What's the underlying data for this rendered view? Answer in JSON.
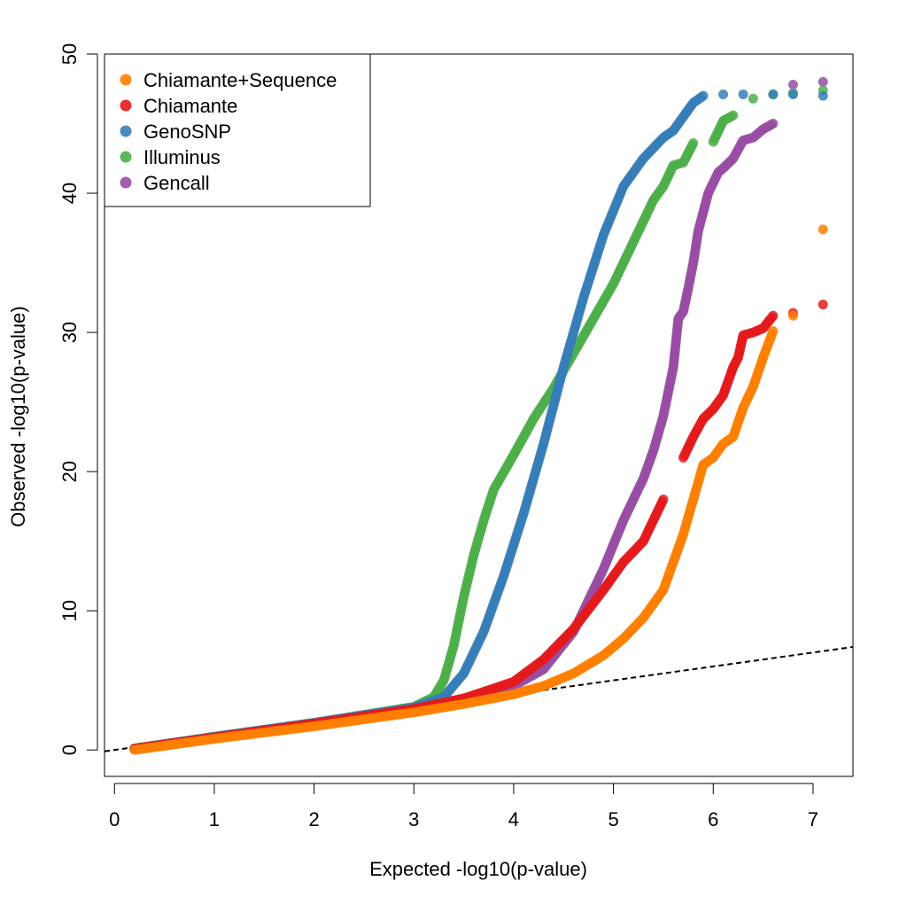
{
  "chart_data": {
    "type": "scatter",
    "xlabel": "Expected -log10(p-value)",
    "ylabel": "Observed -log10(p-value)",
    "xlim": [
      -0.1,
      7.4
    ],
    "ylim": [
      -1.9,
      50
    ],
    "x_ticks": [
      0,
      1,
      2,
      3,
      4,
      5,
      6,
      7
    ],
    "y_ticks": [
      0,
      10,
      20,
      30,
      40,
      50
    ],
    "x_tick_labels": [
      "0",
      "1",
      "2",
      "3",
      "4",
      "5",
      "6",
      "7"
    ],
    "y_tick_labels": [
      "0",
      "10",
      "20",
      "30",
      "40",
      "50"
    ],
    "grid": false,
    "legend_position": "top-left",
    "reference_line": {
      "style": "dashed",
      "slope": 1,
      "intercept": 0
    },
    "series": [
      {
        "name": "Gencall",
        "color": "#984EA3",
        "points": [
          [
            0.2,
            0.1
          ],
          [
            1,
            0.9
          ],
          [
            2,
            1.9
          ],
          [
            3,
            2.95
          ],
          [
            3.5,
            3.7
          ],
          [
            4,
            4.6
          ],
          [
            4.3,
            5.8
          ],
          [
            4.6,
            8.5
          ],
          [
            4.9,
            13
          ],
          [
            5.1,
            16.5
          ],
          [
            5.3,
            19.5
          ],
          [
            5.4,
            21.5
          ],
          [
            5.5,
            24
          ],
          [
            5.6,
            27.5
          ],
          [
            5.65,
            31
          ],
          [
            5.7,
            31.5
          ],
          [
            5.75,
            33.2
          ],
          [
            5.8,
            35
          ],
          [
            5.85,
            37.3
          ],
          [
            5.95,
            40
          ],
          [
            6.05,
            41.5
          ],
          [
            6.1,
            41.8
          ],
          [
            6.2,
            42.5
          ],
          [
            6.3,
            43.8
          ],
          [
            6.4,
            44
          ],
          [
            6.5,
            44.6
          ],
          [
            6.6,
            45
          ],
          [
            6.8,
            47.8
          ],
          [
            7.1,
            48
          ]
        ]
      },
      {
        "name": "Illuminus",
        "color": "#4DAF4A",
        "points": [
          [
            0.2,
            0.1
          ],
          [
            1,
            0.95
          ],
          [
            2,
            1.95
          ],
          [
            3,
            3.1
          ],
          [
            3.2,
            3.8
          ],
          [
            3.3,
            5
          ],
          [
            3.4,
            7.5
          ],
          [
            3.5,
            11
          ],
          [
            3.6,
            14
          ],
          [
            3.7,
            16.5
          ],
          [
            3.8,
            18.7
          ],
          [
            4,
            21.2
          ],
          [
            4.2,
            23.8
          ],
          [
            4.4,
            26
          ],
          [
            4.6,
            28.5
          ],
          [
            4.8,
            31
          ],
          [
            5,
            33.5
          ],
          [
            5.2,
            36.5
          ],
          [
            5.4,
            39.5
          ],
          [
            5.5,
            40.5
          ],
          [
            5.6,
            42
          ],
          [
            5.7,
            42.2
          ],
          [
            5.8,
            43.6
          ],
          [
            6,
            43.7
          ],
          [
            6.1,
            45.2
          ],
          [
            6.2,
            45.6
          ],
          [
            6.4,
            46.8
          ],
          [
            6.6,
            47.1
          ],
          [
            6.8,
            47.2
          ],
          [
            7.1,
            47.4
          ]
        ]
      },
      {
        "name": "GenoSNP",
        "color": "#377EB8",
        "points": [
          [
            0.2,
            0.1
          ],
          [
            1,
            0.95
          ],
          [
            2,
            1.95
          ],
          [
            3,
            3.05
          ],
          [
            3.3,
            3.8
          ],
          [
            3.5,
            5.5
          ],
          [
            3.7,
            8.5
          ],
          [
            3.9,
            12.5
          ],
          [
            4.1,
            17
          ],
          [
            4.3,
            22
          ],
          [
            4.5,
            27.5
          ],
          [
            4.7,
            32.5
          ],
          [
            4.9,
            37
          ],
          [
            5.1,
            40.5
          ],
          [
            5.3,
            42.5
          ],
          [
            5.5,
            44
          ],
          [
            5.6,
            44.5
          ],
          [
            5.7,
            45.5
          ],
          [
            5.8,
            46.5
          ],
          [
            5.9,
            47
          ],
          [
            6.1,
            47.1
          ],
          [
            6.3,
            47.1
          ],
          [
            6.6,
            47.1
          ],
          [
            6.8,
            47.1
          ],
          [
            7.1,
            47
          ]
        ]
      },
      {
        "name": "Chiamante",
        "color": "#E41A1C",
        "points": [
          [
            0.2,
            0.1
          ],
          [
            1,
            0.9
          ],
          [
            2,
            1.9
          ],
          [
            3,
            2.95
          ],
          [
            3.5,
            3.7
          ],
          [
            4,
            4.9
          ],
          [
            4.3,
            6.5
          ],
          [
            4.6,
            8.7
          ],
          [
            4.9,
            11.5
          ],
          [
            5.1,
            13.5
          ],
          [
            5.3,
            15
          ],
          [
            5.5,
            18
          ],
          [
            5.7,
            21
          ],
          [
            5.8,
            22.5
          ],
          [
            5.9,
            23.8
          ],
          [
            6,
            24.5
          ],
          [
            6.1,
            25.5
          ],
          [
            6.2,
            27.5
          ],
          [
            6.25,
            28.2
          ],
          [
            6.3,
            29.8
          ],
          [
            6.4,
            30
          ],
          [
            6.5,
            30.3
          ],
          [
            6.6,
            31.2
          ],
          [
            6.8,
            31.4
          ],
          [
            7.1,
            32
          ]
        ]
      },
      {
        "name": "Chiamante+Sequence",
        "color": "#FF7F00",
        "points": [
          [
            0.2,
            0
          ],
          [
            1,
            0.8
          ],
          [
            2,
            1.7
          ],
          [
            3,
            2.7
          ],
          [
            3.5,
            3.3
          ],
          [
            4,
            4
          ],
          [
            4.3,
            4.6
          ],
          [
            4.6,
            5.5
          ],
          [
            4.9,
            6.8
          ],
          [
            5.1,
            8
          ],
          [
            5.3,
            9.5
          ],
          [
            5.5,
            11.5
          ],
          [
            5.6,
            13.5
          ],
          [
            5.7,
            15.5
          ],
          [
            5.8,
            18
          ],
          [
            5.9,
            20.5
          ],
          [
            6,
            21
          ],
          [
            6.1,
            22
          ],
          [
            6.2,
            22.5
          ],
          [
            6.3,
            24.6
          ],
          [
            6.4,
            26.1
          ],
          [
            6.5,
            28.2
          ],
          [
            6.6,
            30.1
          ],
          [
            6.8,
            31.2
          ],
          [
            7.1,
            37.4
          ]
        ]
      }
    ],
    "legend": [
      "Chiamante+Sequence",
      "Chiamante",
      "GenoSNP",
      "Illuminus",
      "Gencall"
    ],
    "legend_colors": [
      "#FF7F00",
      "#E41A1C",
      "#377EB8",
      "#4DAF4A",
      "#984EA3"
    ]
  }
}
